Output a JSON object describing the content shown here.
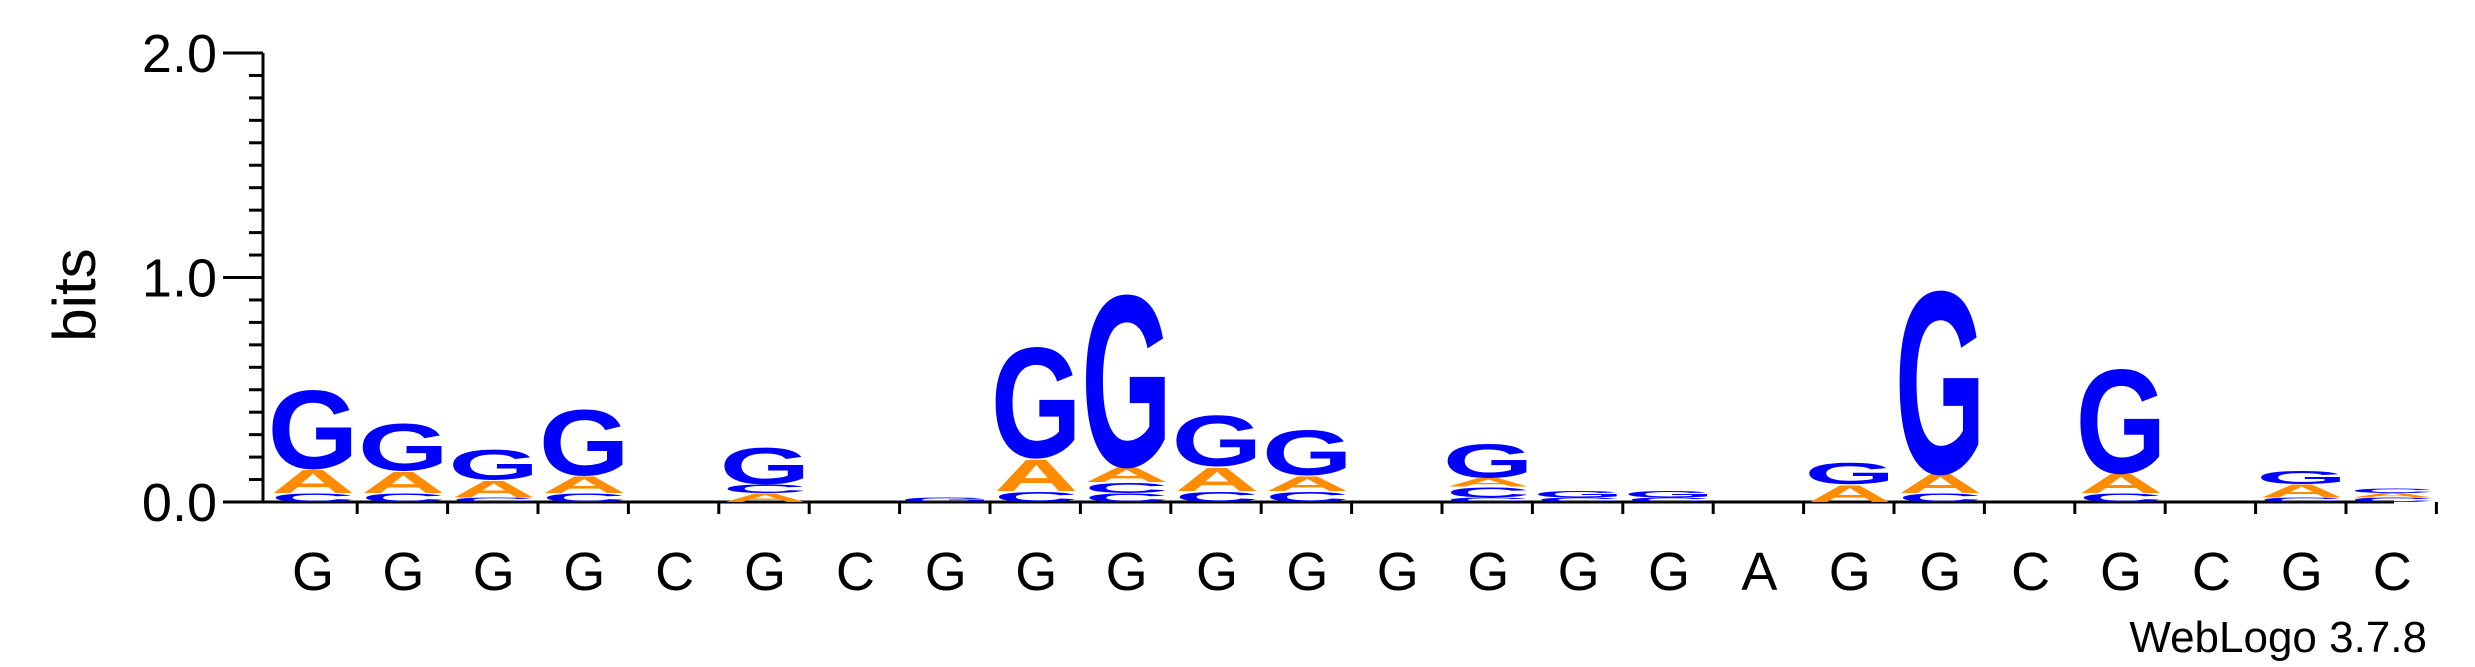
{
  "chart_data": {
    "type": "sequence-logo",
    "ylabel": "bits",
    "ylim": [
      0,
      2.0
    ],
    "yticks": [
      {
        "value": 0.0,
        "label": "0.0"
      },
      {
        "value": 1.0,
        "label": "1.0"
      },
      {
        "value": 2.0,
        "label": "2.0"
      }
    ],
    "colors": {
      "A": "#ff8c00",
      "G": "#0000ff",
      "C": "#0000ff",
      "T": "#ff8c00"
    },
    "positions": [
      {
        "label": "G",
        "stack": [
          {
            "l": "C",
            "h": 0.04
          },
          {
            "l": "A",
            "h": 0.11
          },
          {
            "l": "G",
            "h": 0.37
          }
        ]
      },
      {
        "label": "G",
        "stack": [
          {
            "l": "C",
            "h": 0.04
          },
          {
            "l": "A",
            "h": 0.1
          },
          {
            "l": "G",
            "h": 0.22
          }
        ]
      },
      {
        "label": "G",
        "stack": [
          {
            "l": "C",
            "h": 0.02
          },
          {
            "l": "A",
            "h": 0.08
          },
          {
            "l": "G",
            "h": 0.14
          }
        ]
      },
      {
        "label": "G",
        "stack": [
          {
            "l": "C",
            "h": 0.04
          },
          {
            "l": "A",
            "h": 0.08
          },
          {
            "l": "G",
            "h": 0.31
          }
        ]
      },
      {
        "label": "C",
        "stack": []
      },
      {
        "label": "G",
        "stack": [
          {
            "l": "A",
            "h": 0.04
          },
          {
            "l": "C",
            "h": 0.04
          },
          {
            "l": "G",
            "h": 0.17
          }
        ]
      },
      {
        "label": "C",
        "stack": []
      },
      {
        "label": "G",
        "stack": [
          {
            "l": "G",
            "h": 0.02
          }
        ]
      },
      {
        "label": "G",
        "stack": [
          {
            "l": "C",
            "h": 0.05
          },
          {
            "l": "A",
            "h": 0.15
          },
          {
            "l": "G",
            "h": 0.52
          }
        ]
      },
      {
        "label": "G",
        "stack": [
          {
            "l": "C",
            "h": 0.04
          },
          {
            "l": "C",
            "h": 0.05
          },
          {
            "l": "A",
            "h": 0.07
          },
          {
            "l": "G",
            "h": 0.81
          }
        ]
      },
      {
        "label": "G",
        "stack": [
          {
            "l": "C",
            "h": 0.05
          },
          {
            "l": "A",
            "h": 0.11
          },
          {
            "l": "G",
            "h": 0.24
          }
        ]
      },
      {
        "label": "G",
        "stack": [
          {
            "l": "C",
            "h": 0.05
          },
          {
            "l": "A",
            "h": 0.07
          },
          {
            "l": "G",
            "h": 0.21
          }
        ]
      },
      {
        "label": "G",
        "stack": []
      },
      {
        "label": "G",
        "stack": [
          {
            "l": "C",
            "h": 0.02
          },
          {
            "l": "C",
            "h": 0.05
          },
          {
            "l": "A",
            "h": 0.04
          },
          {
            "l": "G",
            "h": 0.16
          }
        ]
      },
      {
        "label": "G",
        "stack": [
          {
            "l": "C",
            "h": 0.02
          },
          {
            "l": "G",
            "h": 0.03
          }
        ]
      },
      {
        "label": "G",
        "stack": [
          {
            "l": "C",
            "h": 0.02
          },
          {
            "l": "G",
            "h": 0.03
          }
        ]
      },
      {
        "label": "A",
        "stack": []
      },
      {
        "label": "G",
        "stack": [
          {
            "l": "A",
            "h": 0.08
          },
          {
            "l": "G",
            "h": 0.1
          }
        ]
      },
      {
        "label": "G",
        "stack": [
          {
            "l": "C",
            "h": 0.04
          },
          {
            "l": "A",
            "h": 0.09
          },
          {
            "l": "G",
            "h": 0.86
          }
        ]
      },
      {
        "label": "C",
        "stack": []
      },
      {
        "label": "G",
        "stack": [
          {
            "l": "C",
            "h": 0.04
          },
          {
            "l": "A",
            "h": 0.09
          },
          {
            "l": "G",
            "h": 0.49
          }
        ]
      },
      {
        "label": "C",
        "stack": []
      },
      {
        "label": "G",
        "stack": [
          {
            "l": "C",
            "h": 0.02
          },
          {
            "l": "A",
            "h": 0.06
          },
          {
            "l": "G",
            "h": 0.06
          }
        ]
      },
      {
        "label": "C",
        "stack": [
          {
            "l": "C",
            "h": 0.02
          },
          {
            "l": "A",
            "h": 0.02
          },
          {
            "l": "C",
            "h": 0.02
          }
        ]
      }
    ]
  },
  "footer": {
    "text": "WebLogo 3.7.8"
  }
}
